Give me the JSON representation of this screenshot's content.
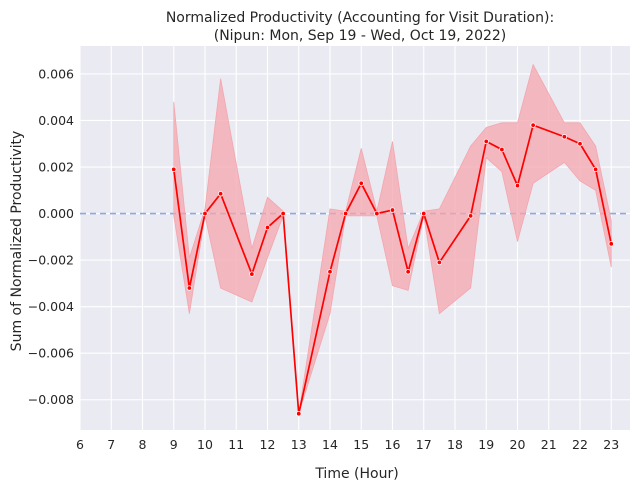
{
  "chart_data": {
    "type": "line",
    "title_line1": "Normalized Productivity (Accounting for Visit Duration):",
    "title_line2": "(Nipun: Mon, Sep 19 - Wed, Oct 19, 2022)",
    "xlabel": "Time (Hour)",
    "ylabel": "Sum of Normalized Productivity",
    "xlim": [
      6,
      23.6
    ],
    "ylim": [
      -0.0093,
      0.0072
    ],
    "x_ticks": [
      6,
      7,
      8,
      9,
      10,
      11,
      12,
      13,
      14,
      15,
      16,
      17,
      18,
      19,
      20,
      21,
      22,
      23
    ],
    "y_ticks": [
      -0.008,
      -0.006,
      -0.004,
      -0.002,
      0.0,
      0.002,
      0.004,
      0.006
    ],
    "y_tick_labels": [
      "−0.008",
      "−0.006",
      "−0.004",
      "−0.002",
      "0.000",
      "0.002",
      "0.004",
      "0.006"
    ],
    "grid": true,
    "reference_line": {
      "y": 0.0,
      "style": "dashed",
      "color": "#8fa9dc"
    },
    "colors": {
      "background": "#eaeaf2",
      "grid": "#ffffff",
      "line": "#ff0000",
      "band": "#f4a6ae"
    },
    "series": [
      {
        "x": [
          9.0,
          9.5,
          10.0,
          10.5,
          11.5,
          12.0,
          12.5,
          13.0,
          14.0,
          14.5,
          15.0,
          15.5,
          16.0,
          16.5,
          17.0,
          17.5,
          18.5,
          19.0,
          19.5,
          20.0,
          20.5,
          21.5,
          22.0,
          22.5,
          23.0
        ],
        "y": [
          0.0019,
          -0.0032,
          0.0,
          0.00085,
          -0.0026,
          -0.0006,
          0.0,
          -0.0086,
          -0.0025,
          0.0,
          0.0013,
          0.0,
          0.00015,
          -0.0025,
          0.0,
          -0.0021,
          -0.0001,
          0.0031,
          0.00275,
          0.0012,
          0.0038,
          0.0033,
          0.003,
          0.0019,
          -0.0013
        ],
        "ci_upper": [
          0.0048,
          -0.0019,
          0.0002,
          0.0058,
          -0.0015,
          0.0007,
          0.0001,
          -0.0086,
          0.0002,
          0.0001,
          0.0028,
          0.0001,
          0.0031,
          -0.0015,
          0.0001,
          0.0002,
          0.0029,
          0.0037,
          0.0039,
          0.0039,
          0.0064,
          0.0039,
          0.0039,
          0.0029,
          -0.0003
        ],
        "ci_lower": [
          -0.0001,
          -0.0043,
          -0.0001,
          -0.0032,
          -0.0038,
          -0.0019,
          -0.0001,
          -0.0086,
          -0.0043,
          -0.0001,
          -0.0001,
          -0.0001,
          -0.0031,
          -0.0033,
          -0.0001,
          -0.0043,
          -0.0032,
          0.0024,
          0.0018,
          -0.0012,
          0.0013,
          0.0022,
          0.0014,
          0.001,
          -0.0023
        ]
      }
    ]
  }
}
